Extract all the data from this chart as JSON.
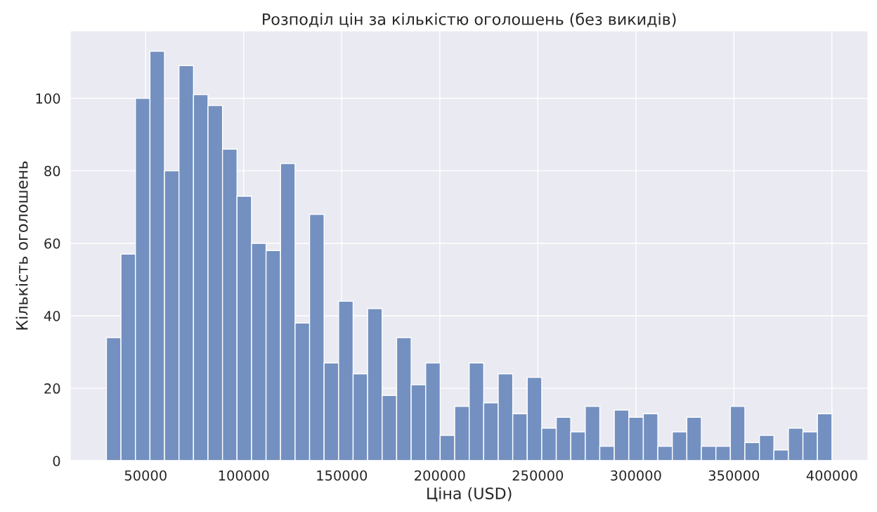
{
  "chart_data": {
    "type": "histogram",
    "title": "Розподіл цін за кількістю оголошень (без викидів)",
    "xlabel": "Ціна (USD)",
    "ylabel": "Кількість оголошень",
    "bins": [
      30000,
      37400,
      44800,
      52200,
      59600,
      67000,
      74400,
      81800,
      89200,
      96600,
      104000,
      111400,
      118800,
      126200,
      133600,
      141000,
      148400,
      155800,
      163200,
      170600,
      178000,
      185400,
      192800,
      200200,
      207600,
      215000,
      222400,
      229800,
      237200,
      244600,
      252000,
      259400,
      266800,
      274200,
      281600,
      289000,
      296400,
      303800,
      311200,
      318600,
      326000,
      333400,
      340800,
      348200,
      355600,
      363000,
      370400,
      377800,
      385200,
      392600,
      400000
    ],
    "values": [
      34,
      57,
      100,
      113,
      80,
      109,
      101,
      98,
      86,
      73,
      60,
      58,
      82,
      38,
      68,
      27,
      44,
      24,
      42,
      18,
      34,
      21,
      27,
      7,
      15,
      27,
      16,
      24,
      13,
      23,
      9,
      12,
      8,
      15,
      4,
      14,
      12,
      13,
      4,
      8,
      12,
      4,
      4,
      15,
      5,
      7,
      3,
      9,
      8,
      13
    ],
    "color": "#7390c0",
    "xlim": [
      11500,
      418500
    ],
    "ylim": [
      0,
      118.65
    ],
    "xticks": [
      50000,
      100000,
      150000,
      200000,
      250000,
      300000,
      350000,
      400000
    ],
    "yticks": [
      0,
      20,
      40,
      60,
      80,
      100
    ],
    "grid": true
  }
}
